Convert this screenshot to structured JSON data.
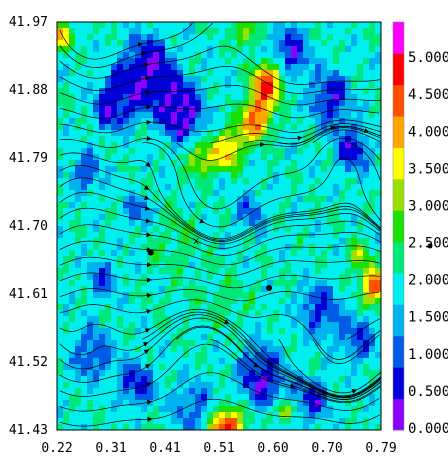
{
  "chart_data": {
    "type": "heatmap",
    "title": "",
    "xlabel": "",
    "ylabel": "",
    "xlim": [
      0.22,
      0.79
    ],
    "ylim": [
      41.43,
      41.97
    ],
    "x_ticks": [
      "0.22",
      "0.31",
      "0.41",
      "0.51",
      "0.60",
      "0.70",
      "0.79"
    ],
    "y_ticks": [
      "41.97",
      "41.88",
      "41.79",
      "41.70",
      "41.61",
      "41.52",
      "41.43"
    ],
    "colorbar": {
      "range": [
        0,
        5.5
      ],
      "tick_labels": [
        "0.000",
        "0.500",
        "1.000",
        "1.500",
        "2.000",
        "2.500",
        "3.000",
        "3.500",
        "4.000",
        "4.500",
        "5.000"
      ],
      "colors": [
        "#8b00ff",
        "#0000d9",
        "#005be6",
        "#00b2ee",
        "#00eeee",
        "#00e87a",
        "#1ee000",
        "#9ae000",
        "#ffff00",
        "#ffa500",
        "#ff5000",
        "#ff0000",
        "#ff00ff"
      ]
    },
    "overlay": "streamlines",
    "markers": [
      {
        "x": 0.385,
        "y": 41.665
      },
      {
        "x": 0.593,
        "y": 41.618
      }
    ],
    "annotation_markers": [
      "x"
    ],
    "field_features": [
      {
        "x": 0.38,
        "y": 41.91,
        "r": 0.05,
        "value": 0.4
      },
      {
        "x": 0.32,
        "y": 41.86,
        "r": 0.04,
        "value": 0.6
      },
      {
        "x": 0.44,
        "y": 41.85,
        "r": 0.045,
        "value": 0.3
      },
      {
        "x": 0.63,
        "y": 41.93,
        "r": 0.035,
        "value": 0.5
      },
      {
        "x": 0.7,
        "y": 41.87,
        "r": 0.04,
        "value": 0.6
      },
      {
        "x": 0.74,
        "y": 41.8,
        "r": 0.035,
        "value": 0.7
      },
      {
        "x": 0.27,
        "y": 41.77,
        "r": 0.03,
        "value": 0.9
      },
      {
        "x": 0.36,
        "y": 41.72,
        "r": 0.025,
        "value": 1.0
      },
      {
        "x": 0.56,
        "y": 41.72,
        "r": 0.03,
        "value": 1.1
      },
      {
        "x": 0.3,
        "y": 41.63,
        "r": 0.03,
        "value": 1.0
      },
      {
        "x": 0.68,
        "y": 41.59,
        "r": 0.04,
        "value": 0.8
      },
      {
        "x": 0.75,
        "y": 41.55,
        "r": 0.035,
        "value": 0.9
      },
      {
        "x": 0.28,
        "y": 41.53,
        "r": 0.04,
        "value": 0.9
      },
      {
        "x": 0.36,
        "y": 41.49,
        "r": 0.035,
        "value": 0.7
      },
      {
        "x": 0.58,
        "y": 41.5,
        "r": 0.045,
        "value": 0.5
      },
      {
        "x": 0.67,
        "y": 41.47,
        "r": 0.035,
        "value": 0.8
      },
      {
        "x": 0.46,
        "y": 41.46,
        "r": 0.04,
        "value": 1.0
      },
      {
        "x": 0.59,
        "y": 41.89,
        "r": 0.03,
        "value": 4.7
      },
      {
        "x": 0.57,
        "y": 41.84,
        "r": 0.03,
        "value": 4.2
      },
      {
        "x": 0.52,
        "y": 41.8,
        "r": 0.03,
        "value": 3.8
      },
      {
        "x": 0.47,
        "y": 41.79,
        "r": 0.025,
        "value": 3.5
      },
      {
        "x": 0.23,
        "y": 41.95,
        "r": 0.02,
        "value": 3.8
      },
      {
        "x": 0.55,
        "y": 41.955,
        "r": 0.02,
        "value": 3.2
      },
      {
        "x": 0.78,
        "y": 41.62,
        "r": 0.025,
        "value": 4.6
      },
      {
        "x": 0.75,
        "y": 41.66,
        "r": 0.02,
        "value": 3.2
      },
      {
        "x": 0.52,
        "y": 41.43,
        "r": 0.03,
        "value": 5.2
      },
      {
        "x": 0.62,
        "y": 41.455,
        "r": 0.015,
        "value": 4.2
      },
      {
        "x": 0.43,
        "y": 41.68,
        "r": 0.05,
        "value": 2.4
      },
      {
        "x": 0.52,
        "y": 41.6,
        "r": 0.05,
        "value": 2.3
      },
      {
        "x": 0.41,
        "y": 41.58,
        "r": 0.04,
        "value": 2.1
      }
    ]
  }
}
